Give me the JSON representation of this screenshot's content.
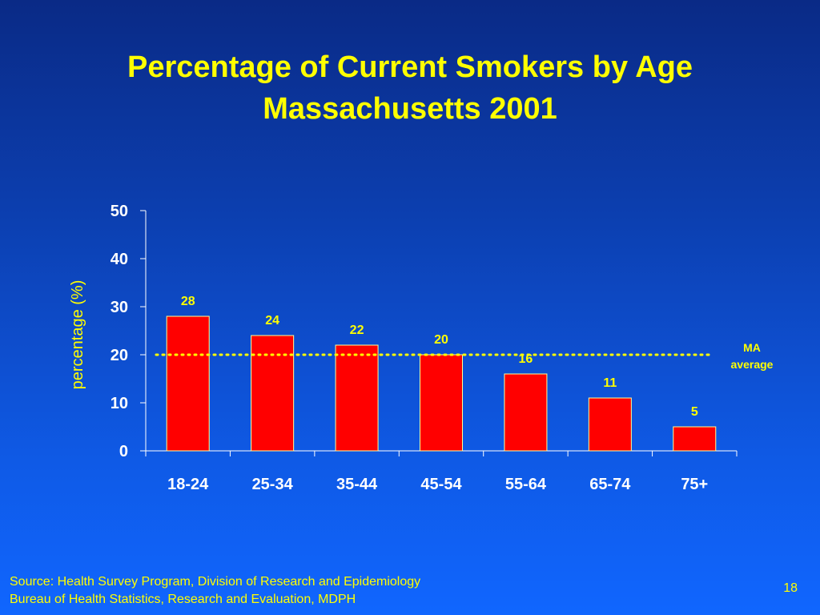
{
  "title_line1": "Percentage of Current Smokers by Age",
  "title_line2": "Massachusetts 2001",
  "source_line1": "Source: Health Survey Program, Division of Research and Epidemiology",
  "source_line2": "Bureau of Health Statistics, Research and Evaluation, MDPH",
  "page_number": "18",
  "colors": {
    "background": "#0c3fb0",
    "text": "#ffff00",
    "bar_fill": "#ff0000",
    "axis": "#ffffff",
    "average_line": "#ffff00"
  },
  "chart_data": {
    "type": "bar",
    "title": "",
    "xlabel": "",
    "ylabel": "percentage (%)",
    "categories": [
      "18-24",
      "25-34",
      "35-44",
      "45-54",
      "55-64",
      "65-74",
      "75+"
    ],
    "values": [
      28,
      24,
      22,
      20,
      16,
      11,
      5
    ],
    "data_labels": [
      "28",
      "24",
      "22",
      "20",
      "16",
      "11",
      "5"
    ],
    "ylim": [
      0,
      50
    ],
    "yticks": [
      0,
      10,
      20,
      30,
      40,
      50
    ],
    "grid": false,
    "reference_line": {
      "value": 20,
      "label": "MA average",
      "style": "dotted"
    }
  }
}
